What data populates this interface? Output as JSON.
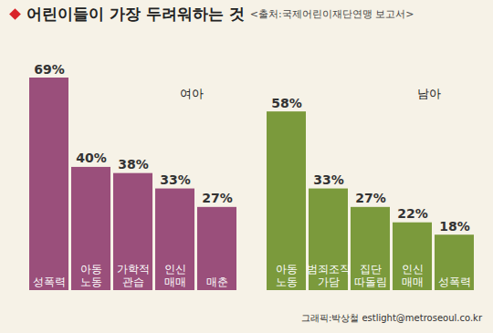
{
  "title": "어린이들이 가장 두려워하는 것",
  "subtitle": "<출처:국제어린이재단연맹 보고서>",
  "caption": "그래픽:박상철 estlight@metroseoul.co.kr",
  "chart_data": [
    {
      "type": "bar",
      "title": "여아",
      "categories": [
        "성폭력",
        "아동\n노동",
        "가학적\n관습",
        "인신\n매매",
        "매춘"
      ],
      "values": [
        69,
        40,
        38,
        33,
        27
      ],
      "value_labels": [
        "69%",
        "40%",
        "38%",
        "33%",
        "27%"
      ],
      "data_labels": true,
      "tick_labels": false,
      "color": "#9a4f7b"
    },
    {
      "type": "bar",
      "title": "남아",
      "categories": [
        "아동\n노동",
        "범죄조직\n가담",
        "집단\n따돌림",
        "인신\n매매",
        "성폭력"
      ],
      "values": [
        58,
        33,
        27,
        22,
        18
      ],
      "value_labels": [
        "58%",
        "33%",
        "27%",
        "22%",
        "18%"
      ],
      "data_labels": true,
      "tick_labels": false,
      "color": "#7b9a3c"
    }
  ]
}
